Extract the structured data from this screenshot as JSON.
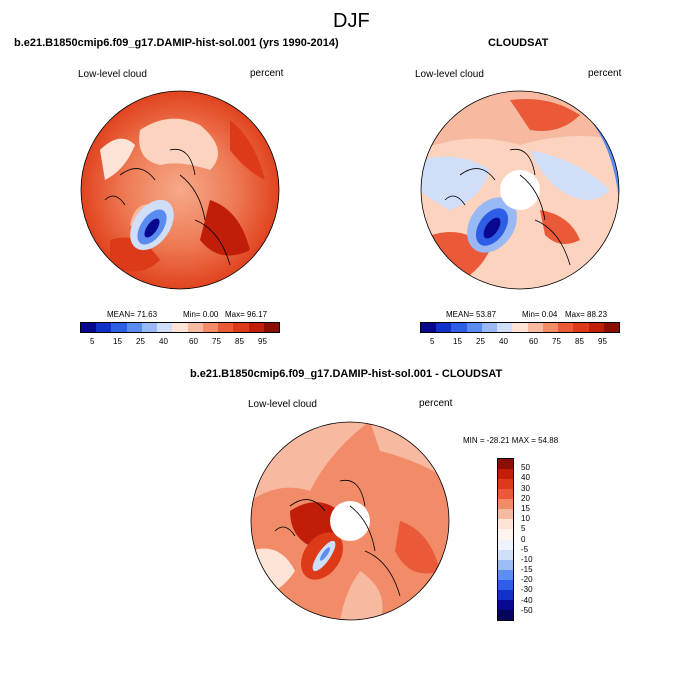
{
  "figure": {
    "title": "DJF"
  },
  "panel_model": {
    "header": "b.e21.B1850cmip6.f09_g17.DAMIP-hist-sol.001 (yrs 1990-2014)",
    "variable_label": "Low-level cloud",
    "units_label": "percent",
    "stats": {
      "mean": "MEAN= 71.63",
      "min": "Min= 0.00",
      "max": "Max= 96.17"
    },
    "colorbar_ticks": [
      "5",
      "15",
      "25",
      "40",
      "60",
      "75",
      "85",
      "95"
    ]
  },
  "panel_obs": {
    "header": "CLOUDSAT",
    "variable_label": "Low-level cloud",
    "units_label": "percent",
    "stats": {
      "mean": "MEAN= 53.87",
      "min": "Min= 0.04",
      "max": "Max= 88.23"
    },
    "colorbar_ticks": [
      "5",
      "15",
      "25",
      "40",
      "60",
      "75",
      "85",
      "95"
    ]
  },
  "panel_diff": {
    "header": "b.e21.B1850cmip6.f09_g17.DAMIP-hist-sol.001 - CLOUDSAT",
    "variable_label": "Low-level cloud",
    "units_label": "percent",
    "minmax": "MIN = -28.21  MAX = 54.88",
    "colorbar_ticks": [
      "50",
      "40",
      "30",
      "20",
      "15",
      "10",
      "5",
      "0",
      "-5",
      "-10",
      "-15",
      "-20",
      "-30",
      "-40",
      "-50"
    ]
  },
  "colors": {
    "abs_scale": [
      "#08088f",
      "#1030c8",
      "#2e5de6",
      "#5a8cf0",
      "#98b8f6",
      "#d0def8",
      "#fde4d6",
      "#f7b9a0",
      "#f18b68",
      "#ea5a38",
      "#dc3a18",
      "#c11e0a",
      "#8a1005"
    ],
    "diff_scale": [
      "#8a1005",
      "#c11e0a",
      "#dc3a18",
      "#ea5a38",
      "#f18b68",
      "#f7b9a0",
      "#fde4d6",
      "#fff5ee",
      "#eef4fd",
      "#cfdff8",
      "#9bbcf4",
      "#5b8ef0",
      "#2e5de6",
      "#1030c8",
      "#08088f",
      "#050560"
    ]
  }
}
